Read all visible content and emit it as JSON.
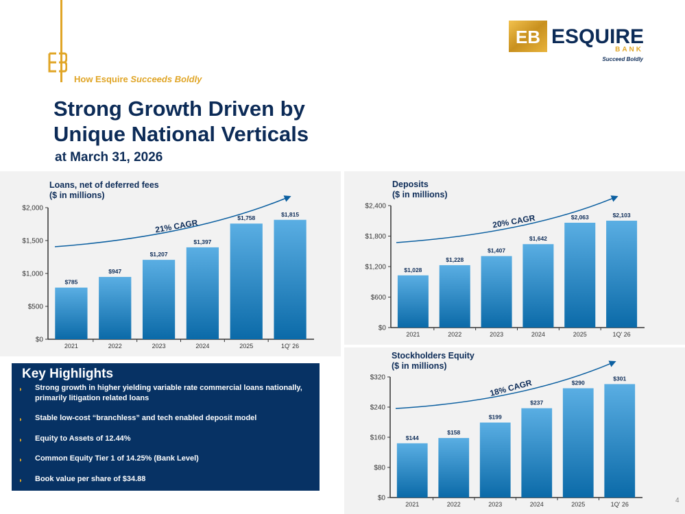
{
  "header": {
    "tagline_prefix": "How Esquire",
    "tagline_italic": "Succeeds Boldly",
    "title_line1": "Strong Growth Driven by",
    "title_line2": "Unique National Verticals",
    "subtitle": "at March 31, 2026"
  },
  "logo": {
    "mark": "EB",
    "name": "ESQUIRE",
    "bank": "BANK",
    "slogan": "Succeed Boldly"
  },
  "colors": {
    "navy": "#0c2b57",
    "gold": "#e0a526",
    "bar_top": "#5aaee3",
    "bar_bottom": "#0b6aa8",
    "highlight_bg": "#073264"
  },
  "highlights": {
    "title": "Key Highlights",
    "items": [
      "Strong growth in higher yielding variable rate commercial loans nationally, primarily litigation related loans",
      "Stable low-cost “branchless” and tech enabled deposit model",
      "Equity to Assets of 12.44%",
      "Common Equity Tier 1 of 14.25% (Bank Level)",
      "Book value per share of $34.88"
    ]
  },
  "page_number": "4",
  "chart_data": [
    {
      "type": "bar",
      "title": "Loans, net of deferred fees ($ in millions)",
      "title_lines": [
        "Loans, net of deferred fees",
        "($ in millions)"
      ],
      "categories": [
        "2021",
        "2022",
        "2023",
        "2024",
        "2025",
        "1Q' 26"
      ],
      "values": [
        785,
        947,
        1207,
        1397,
        1758,
        1815
      ],
      "labels": [
        "$785",
        "$947",
        "$1,207",
        "$1,397",
        "$1,758",
        "$1,815"
      ],
      "ylim": [
        0,
        2000
      ],
      "yticks": [
        "$0",
        "$500",
        "$1,000",
        "$1,500",
        "$2,000"
      ],
      "annotation": "21% CAGR"
    },
    {
      "type": "bar",
      "title": "Deposits ($ in millions)",
      "title_lines": [
        "Deposits",
        "($ in millions)"
      ],
      "categories": [
        "2021",
        "2022",
        "2023",
        "2024",
        "2025",
        "1Q' 26"
      ],
      "values": [
        1028,
        1228,
        1407,
        1642,
        2063,
        2103
      ],
      "labels": [
        "$1,028",
        "$1,228",
        "$1,407",
        "$1,642",
        "$2,063",
        "$2,103"
      ],
      "ylim": [
        0,
        2400
      ],
      "yticks": [
        "$0",
        "$600",
        "$1,200",
        "$1,800",
        "$2,400"
      ],
      "annotation": "20% CAGR"
    },
    {
      "type": "bar",
      "title": "Stockholders Equity ($ in millions)",
      "title_lines": [
        "Stockholders Equity",
        "($ in millions)"
      ],
      "categories": [
        "2021",
        "2022",
        "2023",
        "2024",
        "2025",
        "1Q' 26"
      ],
      "values": [
        144,
        158,
        199,
        237,
        290,
        301
      ],
      "labels": [
        "$144",
        "$158",
        "$199",
        "$237",
        "$290",
        "$301"
      ],
      "ylim": [
        0,
        320
      ],
      "yticks": [
        "$0",
        "$80",
        "$160",
        "$240",
        "$320"
      ],
      "annotation": "18% CAGR"
    }
  ]
}
